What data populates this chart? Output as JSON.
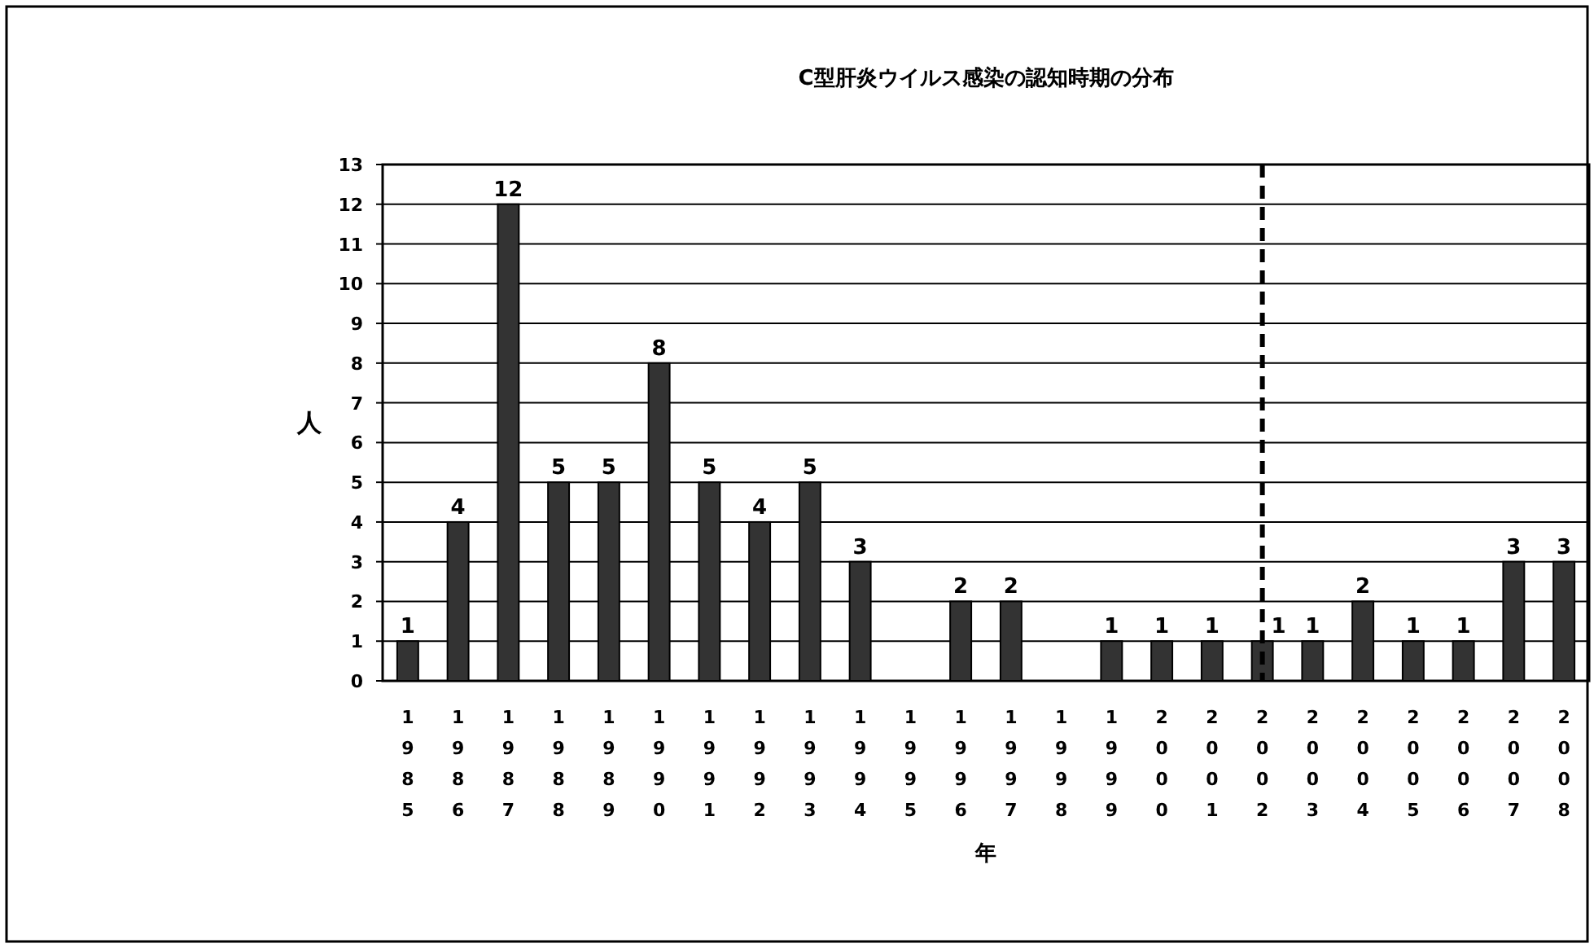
{
  "chart_data": {
    "type": "bar",
    "title": "C型肝炎ウイルス感染の認知時期の分布",
    "xlabel": "年",
    "ylabel": "人",
    "categories": [
      "1985",
      "1986",
      "1987",
      "1988",
      "1989",
      "1990",
      "1991",
      "1992",
      "1993",
      "1994",
      "1995",
      "1996",
      "1997",
      "1998",
      "1999",
      "2000",
      "2001",
      "2002",
      "2003",
      "2004",
      "2005",
      "2006",
      "2007",
      "2008"
    ],
    "values": [
      1,
      4,
      12,
      5,
      5,
      8,
      5,
      4,
      5,
      3,
      0,
      2,
      2,
      0,
      1,
      1,
      1,
      1,
      1,
      2,
      1,
      1,
      3,
      3
    ],
    "value_labels": [
      "1",
      "4",
      "12",
      "5",
      "5",
      "8",
      "5",
      "4",
      "5",
      "3",
      null,
      "2",
      "2",
      null,
      "1",
      "1",
      "1",
      "1",
      "1",
      "2",
      "1",
      "1",
      "3",
      "3"
    ],
    "color": "#333333",
    "ylim": [
      0,
      13
    ],
    "yticks": [
      0,
      1,
      2,
      3,
      4,
      5,
      6,
      7,
      8,
      9,
      10,
      11,
      12,
      13
    ],
    "grid": "y",
    "ref_lines": [
      {
        "axis": "x",
        "value": "2002",
        "line_style": "dashed",
        "color": "#000000"
      }
    ]
  }
}
